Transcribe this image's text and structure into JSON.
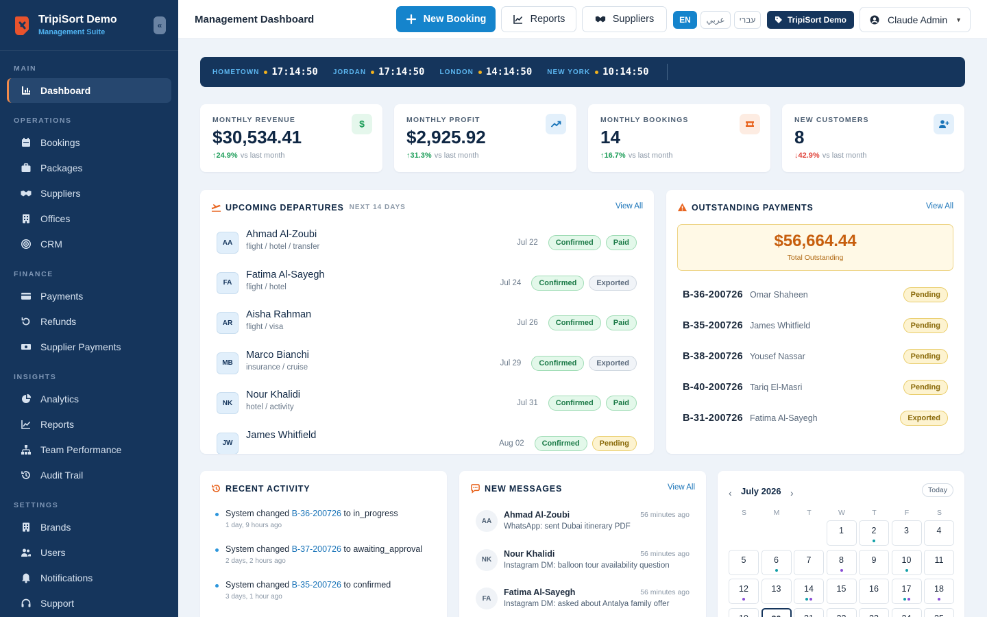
{
  "brand": {
    "title": "TripiSort Demo",
    "subtitle": "Management Suite"
  },
  "sidebar": {
    "sections": [
      {
        "title": "MAIN",
        "items": [
          {
            "label": "Dashboard",
            "icon": "dashboard-icon",
            "active": true
          }
        ]
      },
      {
        "title": "OPERATIONS",
        "items": [
          {
            "label": "Bookings",
            "icon": "calendar-icon"
          },
          {
            "label": "Packages",
            "icon": "briefcase-icon"
          },
          {
            "label": "Suppliers",
            "icon": "handshake-icon"
          },
          {
            "label": "Offices",
            "icon": "building-icon"
          },
          {
            "label": "CRM",
            "icon": "target-icon"
          }
        ]
      },
      {
        "title": "FINANCE",
        "items": [
          {
            "label": "Payments",
            "icon": "credit-card-icon"
          },
          {
            "label": "Refunds",
            "icon": "undo-icon"
          },
          {
            "label": "Supplier Payments",
            "icon": "money-icon"
          }
        ]
      },
      {
        "title": "INSIGHTS",
        "items": [
          {
            "label": "Analytics",
            "icon": "pie-chart-icon"
          },
          {
            "label": "Reports",
            "icon": "line-chart-icon"
          },
          {
            "label": "Team Performance",
            "icon": "org-chart-icon"
          },
          {
            "label": "Audit Trail",
            "icon": "history-icon"
          }
        ]
      },
      {
        "title": "SETTINGS",
        "items": [
          {
            "label": "Brands",
            "icon": "building-icon"
          },
          {
            "label": "Users",
            "icon": "users-icon"
          },
          {
            "label": "Notifications",
            "icon": "bell-icon"
          },
          {
            "label": "Support",
            "icon": "headset-icon"
          }
        ]
      }
    ]
  },
  "topbar": {
    "title": "Management Dashboard",
    "new_booking": "New Booking",
    "reports": "Reports",
    "suppliers": "Suppliers",
    "languages": [
      "EN",
      "عربي",
      "עברי"
    ],
    "brand_chip": "TripiSort Demo",
    "user": "Claude Admin"
  },
  "clocks": [
    {
      "city": "HOMETOWN",
      "time": "17:14:50"
    },
    {
      "city": "JORDAN",
      "time": "17:14:50"
    },
    {
      "city": "LONDON",
      "time": "14:14:50"
    },
    {
      "city": "NEW YORK",
      "time": "10:14:50"
    }
  ],
  "kpis": [
    {
      "label": "MONTHLY REVENUE",
      "value": "$30,534.41",
      "change": "24.9%",
      "direction": "up",
      "suffix": "vs last month",
      "icon": "dollar-icon",
      "icon_color": "#1e9e5a",
      "icon_bg": "#e5f7ec"
    },
    {
      "label": "MONTHLY PROFIT",
      "value": "$2,925.92",
      "change": "31.3%",
      "direction": "up",
      "suffix": "vs last month",
      "icon": "trend-up-icon",
      "icon_color": "#1873b8",
      "icon_bg": "#e3f0fb"
    },
    {
      "label": "MONTHLY BOOKINGS",
      "value": "14",
      "change": "16.7%",
      "direction": "up",
      "suffix": "vs last month",
      "icon": "ticket-icon",
      "icon_color": "#e8641f",
      "icon_bg": "#fdece2"
    },
    {
      "label": "NEW CUSTOMERS",
      "value": "8",
      "change": "42.9%",
      "direction": "down",
      "suffix": "vs last month",
      "icon": "user-plus-icon",
      "icon_color": "#1873b8",
      "icon_bg": "#e3f0fb"
    }
  ],
  "departures": {
    "title": "UPCOMING DEPARTURES",
    "subtitle": "NEXT 14 DAYS",
    "view_all": "View All",
    "items": [
      {
        "initials": "AA",
        "name": "Ahmad Al-Zoubi",
        "type": "flight / hotel / transfer",
        "date": "Jul 22",
        "status": "Confirmed",
        "payment": "Paid"
      },
      {
        "initials": "FA",
        "name": "Fatima Al-Sayegh",
        "type": "flight / hotel",
        "date": "Jul 24",
        "status": "Confirmed",
        "payment": "Exported"
      },
      {
        "initials": "AR",
        "name": "Aisha Rahman",
        "type": "flight / visa",
        "date": "Jul 26",
        "status": "Confirmed",
        "payment": "Paid"
      },
      {
        "initials": "MB",
        "name": "Marco Bianchi",
        "type": "insurance / cruise",
        "date": "Jul 29",
        "status": "Confirmed",
        "payment": "Exported"
      },
      {
        "initials": "NK",
        "name": "Nour Khalidi",
        "type": "hotel / activity",
        "date": "Jul 31",
        "status": "Confirmed",
        "payment": "Paid"
      },
      {
        "initials": "JW",
        "name": "James Whitfield",
        "type": "",
        "date": "Aug 02",
        "status": "Confirmed",
        "payment": "Pending"
      }
    ]
  },
  "payments": {
    "title": "OUTSTANDING PAYMENTS",
    "view_all": "View All",
    "total": "$56,664.44",
    "total_label": "Total Outstanding",
    "items": [
      {
        "ref": "B-36-200726",
        "name": "Omar Shaheen",
        "status": "Pending"
      },
      {
        "ref": "B-35-200726",
        "name": "James Whitfield",
        "status": "Pending"
      },
      {
        "ref": "B-38-200726",
        "name": "Yousef Nassar",
        "status": "Pending"
      },
      {
        "ref": "B-40-200726",
        "name": "Tariq El-Masri",
        "status": "Pending"
      },
      {
        "ref": "B-31-200726",
        "name": "Fatima Al-Sayegh",
        "status": "Exported"
      }
    ]
  },
  "activity": {
    "title": "RECENT ACTIVITY",
    "items": [
      {
        "actor": "System",
        "verb": "changed",
        "ref": "B-36-200726",
        "to": "to",
        "state": "in_progress",
        "time": "1 day, 9 hours ago"
      },
      {
        "actor": "System",
        "verb": "changed",
        "ref": "B-37-200726",
        "to": "to",
        "state": "awaiting_approval",
        "time": "2 days, 2 hours ago"
      },
      {
        "actor": "System",
        "verb": "changed",
        "ref": "B-35-200726",
        "to": "to",
        "state": "confirmed",
        "time": "3 days, 1 hour ago"
      }
    ]
  },
  "messages": {
    "title": "NEW MESSAGES",
    "view_all": "View All",
    "items": [
      {
        "initials": "AA",
        "name": "Ahmad Al-Zoubi",
        "time": "56 minutes ago",
        "text": "WhatsApp: sent Dubai itinerary PDF"
      },
      {
        "initials": "NK",
        "name": "Nour Khalidi",
        "time": "56 minutes ago",
        "text": "Instagram DM: balloon tour availability question"
      },
      {
        "initials": "FA",
        "name": "Fatima Al-Sayegh",
        "time": "56 minutes ago",
        "text": "Instagram DM: asked about Antalya family offer"
      }
    ]
  },
  "calendar": {
    "month": "July 2026",
    "today_label": "Today",
    "weekdays": [
      "S",
      "M",
      "T",
      "W",
      "T",
      "F",
      "S"
    ],
    "first_weekday": 3,
    "days_shown": 25,
    "today": 20,
    "dot_colors": {
      "teal": "#12a0a8",
      "purple": "#8a4fd6"
    },
    "dots": {
      "2": [
        "teal"
      ],
      "6": [
        "teal"
      ],
      "8": [
        "purple"
      ],
      "10": [
        "teal"
      ],
      "12": [
        "purple"
      ],
      "14": [
        "teal",
        "purple"
      ],
      "17": [
        "teal",
        "purple"
      ],
      "18": [
        "purple"
      ]
    }
  }
}
